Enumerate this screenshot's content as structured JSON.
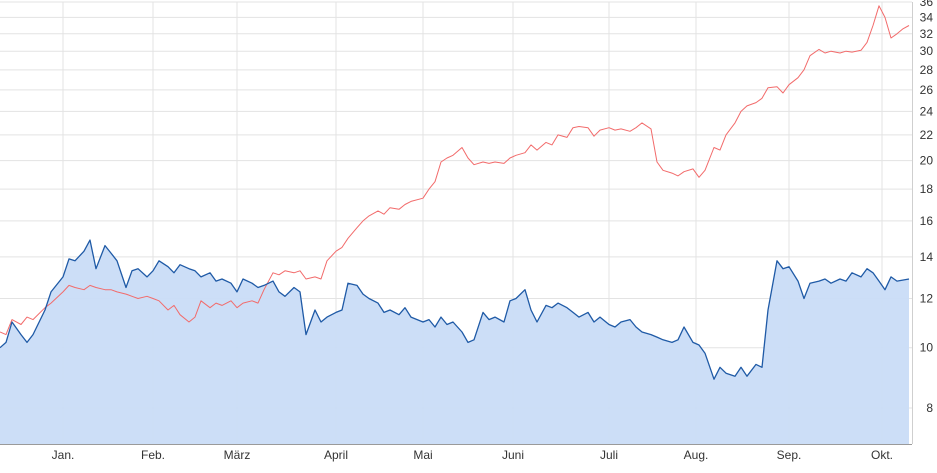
{
  "chart_data": {
    "type": "line",
    "y_scale": "log",
    "ylim": [
      7,
      36
    ],
    "grid": true,
    "legend": "none",
    "y_ticks": [
      8,
      10,
      12,
      14,
      16,
      18,
      20,
      22,
      24,
      26,
      28,
      30,
      32,
      34,
      36
    ],
    "x_ticks": [
      {
        "label": "Jan.",
        "x": "2023-01-02"
      },
      {
        "label": "Feb.",
        "x": "2023-02-01"
      },
      {
        "label": "März",
        "x": "2023-03-01"
      },
      {
        "label": "April",
        "x": "2023-04-03"
      },
      {
        "label": "Mai",
        "x": "2023-05-02"
      },
      {
        "label": "Juni",
        "x": "2023-06-01"
      },
      {
        "label": "Juli",
        "x": "2023-07-03"
      },
      {
        "label": "Aug.",
        "x": "2023-08-01"
      },
      {
        "label": "Sep.",
        "x": "2023-09-01"
      },
      {
        "label": "Okt.",
        "x": "2023-10-02"
      }
    ],
    "xlim": [
      "2022-12-12",
      "2023-10-12"
    ],
    "series": [
      {
        "color": "#f26b6b",
        "style": "line",
        "points": [
          [
            "2022-12-12",
            10.6
          ],
          [
            "2022-12-14",
            10.5
          ],
          [
            "2022-12-16",
            11.1
          ],
          [
            "2022-12-19",
            10.9
          ],
          [
            "2022-12-21",
            11.2
          ],
          [
            "2022-12-23",
            11.1
          ],
          [
            "2022-12-27",
            11.6
          ],
          [
            "2022-12-29",
            11.8
          ],
          [
            "2023-01-02",
            12.3
          ],
          [
            "2023-01-04",
            12.6
          ],
          [
            "2023-01-06",
            12.5
          ],
          [
            "2023-01-09",
            12.4
          ],
          [
            "2023-01-11",
            12.6
          ],
          [
            "2023-01-13",
            12.5
          ],
          [
            "2023-01-16",
            12.4
          ],
          [
            "2023-01-18",
            12.4
          ],
          [
            "2023-01-20",
            12.3
          ],
          [
            "2023-01-23",
            12.2
          ],
          [
            "2023-01-25",
            12.1
          ],
          [
            "2023-01-27",
            12.0
          ],
          [
            "2023-01-30",
            12.1
          ],
          [
            "2023-02-01",
            12.0
          ],
          [
            "2023-02-03",
            11.9
          ],
          [
            "2023-02-06",
            11.5
          ],
          [
            "2023-02-08",
            11.7
          ],
          [
            "2023-02-10",
            11.3
          ],
          [
            "2023-02-13",
            11.0
          ],
          [
            "2023-02-15",
            11.2
          ],
          [
            "2023-02-17",
            11.9
          ],
          [
            "2023-02-20",
            11.6
          ],
          [
            "2023-02-22",
            11.8
          ],
          [
            "2023-02-24",
            11.7
          ],
          [
            "2023-02-27",
            11.9
          ],
          [
            "2023-03-01",
            11.6
          ],
          [
            "2023-03-03",
            11.8
          ],
          [
            "2023-03-06",
            11.9
          ],
          [
            "2023-03-08",
            11.8
          ],
          [
            "2023-03-10",
            12.4
          ],
          [
            "2023-03-13",
            13.2
          ],
          [
            "2023-03-15",
            13.1
          ],
          [
            "2023-03-17",
            13.3
          ],
          [
            "2023-03-20",
            13.2
          ],
          [
            "2023-03-22",
            13.3
          ],
          [
            "2023-03-24",
            12.9
          ],
          [
            "2023-03-27",
            13.0
          ],
          [
            "2023-03-29",
            12.9
          ],
          [
            "2023-03-31",
            13.8
          ],
          [
            "2023-04-03",
            14.3
          ],
          [
            "2023-04-05",
            14.5
          ],
          [
            "2023-04-07",
            15.0
          ],
          [
            "2023-04-10",
            15.6
          ],
          [
            "2023-04-12",
            16.0
          ],
          [
            "2023-04-14",
            16.3
          ],
          [
            "2023-04-17",
            16.6
          ],
          [
            "2023-04-19",
            16.4
          ],
          [
            "2023-04-21",
            16.8
          ],
          [
            "2023-04-24",
            16.7
          ],
          [
            "2023-04-26",
            17.0
          ],
          [
            "2023-04-28",
            17.2
          ],
          [
            "2023-05-02",
            17.4
          ],
          [
            "2023-05-04",
            18.0
          ],
          [
            "2023-05-06",
            18.5
          ],
          [
            "2023-05-08",
            19.9
          ],
          [
            "2023-05-10",
            20.2
          ],
          [
            "2023-05-12",
            20.4
          ],
          [
            "2023-05-15",
            21.0
          ],
          [
            "2023-05-17",
            20.2
          ],
          [
            "2023-05-19",
            19.7
          ],
          [
            "2023-05-22",
            19.9
          ],
          [
            "2023-05-24",
            19.8
          ],
          [
            "2023-05-26",
            19.9
          ],
          [
            "2023-05-29",
            19.8
          ],
          [
            "2023-05-31",
            20.2
          ],
          [
            "2023-06-02",
            20.4
          ],
          [
            "2023-06-05",
            20.6
          ],
          [
            "2023-06-07",
            21.2
          ],
          [
            "2023-06-09",
            20.8
          ],
          [
            "2023-06-12",
            21.4
          ],
          [
            "2023-06-14",
            21.2
          ],
          [
            "2023-06-16",
            22.0
          ],
          [
            "2023-06-19",
            21.8
          ],
          [
            "2023-06-21",
            22.6
          ],
          [
            "2023-06-23",
            22.7
          ],
          [
            "2023-06-26",
            22.6
          ],
          [
            "2023-06-28",
            21.9
          ],
          [
            "2023-06-30",
            22.4
          ],
          [
            "2023-07-03",
            22.6
          ],
          [
            "2023-07-05",
            22.4
          ],
          [
            "2023-07-07",
            22.5
          ],
          [
            "2023-07-10",
            22.3
          ],
          [
            "2023-07-12",
            22.6
          ],
          [
            "2023-07-14",
            23.0
          ],
          [
            "2023-07-17",
            22.5
          ],
          [
            "2023-07-19",
            19.9
          ],
          [
            "2023-07-21",
            19.3
          ],
          [
            "2023-07-24",
            19.1
          ],
          [
            "2023-07-26",
            18.9
          ],
          [
            "2023-07-28",
            19.2
          ],
          [
            "2023-07-31",
            19.4
          ],
          [
            "2023-08-02",
            18.8
          ],
          [
            "2023-08-04",
            19.3
          ],
          [
            "2023-08-07",
            21.0
          ],
          [
            "2023-08-09",
            20.8
          ],
          [
            "2023-08-11",
            22.0
          ],
          [
            "2023-08-14",
            23.0
          ],
          [
            "2023-08-16",
            24.0
          ],
          [
            "2023-08-18",
            24.5
          ],
          [
            "2023-08-21",
            24.8
          ],
          [
            "2023-08-23",
            25.2
          ],
          [
            "2023-08-25",
            26.2
          ],
          [
            "2023-08-28",
            26.3
          ],
          [
            "2023-08-30",
            25.7
          ],
          [
            "2023-09-01",
            26.5
          ],
          [
            "2023-09-04",
            27.2
          ],
          [
            "2023-09-06",
            28.0
          ],
          [
            "2023-09-08",
            29.5
          ],
          [
            "2023-09-11",
            30.2
          ],
          [
            "2023-09-13",
            29.8
          ],
          [
            "2023-09-15",
            30.0
          ],
          [
            "2023-09-18",
            29.8
          ],
          [
            "2023-09-20",
            30.0
          ],
          [
            "2023-09-22",
            29.9
          ],
          [
            "2023-09-25",
            30.1
          ],
          [
            "2023-09-27",
            31.0
          ],
          [
            "2023-09-29",
            33.0
          ],
          [
            "2023-10-01",
            35.5
          ],
          [
            "2023-10-03",
            34.0
          ],
          [
            "2023-10-05",
            31.5
          ],
          [
            "2023-10-07",
            32.0
          ],
          [
            "2023-10-09",
            32.6
          ],
          [
            "2023-10-11",
            33.0
          ]
        ]
      },
      {
        "color": "#1f5aa6",
        "style": "area",
        "fill": "#c9dcf7",
        "points": [
          [
            "2022-12-12",
            10.0
          ],
          [
            "2022-12-14",
            10.2
          ],
          [
            "2022-12-16",
            11.0
          ],
          [
            "2022-12-19",
            10.5
          ],
          [
            "2022-12-21",
            10.2
          ],
          [
            "2022-12-23",
            10.5
          ],
          [
            "2022-12-27",
            11.5
          ],
          [
            "2022-12-29",
            12.3
          ],
          [
            "2023-01-02",
            13.0
          ],
          [
            "2023-01-04",
            13.9
          ],
          [
            "2023-01-06",
            13.8
          ],
          [
            "2023-01-09",
            14.3
          ],
          [
            "2023-01-11",
            14.9
          ],
          [
            "2023-01-13",
            13.4
          ],
          [
            "2023-01-16",
            14.6
          ],
          [
            "2023-01-18",
            14.2
          ],
          [
            "2023-01-20",
            13.8
          ],
          [
            "2023-01-23",
            12.5
          ],
          [
            "2023-01-25",
            13.3
          ],
          [
            "2023-01-27",
            13.4
          ],
          [
            "2023-01-30",
            13.0
          ],
          [
            "2023-02-01",
            13.3
          ],
          [
            "2023-02-03",
            13.8
          ],
          [
            "2023-02-06",
            13.5
          ],
          [
            "2023-02-08",
            13.2
          ],
          [
            "2023-02-10",
            13.6
          ],
          [
            "2023-02-13",
            13.4
          ],
          [
            "2023-02-15",
            13.3
          ],
          [
            "2023-02-17",
            13.0
          ],
          [
            "2023-02-20",
            13.2
          ],
          [
            "2023-02-22",
            12.8
          ],
          [
            "2023-02-24",
            12.9
          ],
          [
            "2023-02-27",
            12.7
          ],
          [
            "2023-03-01",
            12.3
          ],
          [
            "2023-03-03",
            12.9
          ],
          [
            "2023-03-06",
            12.7
          ],
          [
            "2023-03-08",
            12.5
          ],
          [
            "2023-03-10",
            12.6
          ],
          [
            "2023-03-13",
            12.8
          ],
          [
            "2023-03-15",
            12.3
          ],
          [
            "2023-03-17",
            12.1
          ],
          [
            "2023-03-20",
            12.5
          ],
          [
            "2023-03-22",
            12.3
          ],
          [
            "2023-03-24",
            10.5
          ],
          [
            "2023-03-27",
            11.5
          ],
          [
            "2023-03-29",
            11.0
          ],
          [
            "2023-03-31",
            11.2
          ],
          [
            "2023-04-03",
            11.4
          ],
          [
            "2023-04-05",
            11.5
          ],
          [
            "2023-04-07",
            12.7
          ],
          [
            "2023-04-10",
            12.6
          ],
          [
            "2023-04-12",
            12.2
          ],
          [
            "2023-04-14",
            12.0
          ],
          [
            "2023-04-17",
            11.8
          ],
          [
            "2023-04-19",
            11.4
          ],
          [
            "2023-04-21",
            11.5
          ],
          [
            "2023-04-24",
            11.3
          ],
          [
            "2023-04-26",
            11.6
          ],
          [
            "2023-04-28",
            11.2
          ],
          [
            "2023-05-02",
            11.0
          ],
          [
            "2023-05-04",
            11.1
          ],
          [
            "2023-05-06",
            10.8
          ],
          [
            "2023-05-08",
            11.2
          ],
          [
            "2023-05-10",
            10.9
          ],
          [
            "2023-05-12",
            11.0
          ],
          [
            "2023-05-15",
            10.6
          ],
          [
            "2023-05-17",
            10.2
          ],
          [
            "2023-05-19",
            10.3
          ],
          [
            "2023-05-22",
            11.4
          ],
          [
            "2023-05-24",
            11.1
          ],
          [
            "2023-05-26",
            11.2
          ],
          [
            "2023-05-29",
            11.0
          ],
          [
            "2023-05-31",
            11.9
          ],
          [
            "2023-06-02",
            12.0
          ],
          [
            "2023-06-05",
            12.4
          ],
          [
            "2023-06-07",
            11.5
          ],
          [
            "2023-06-09",
            11.0
          ],
          [
            "2023-06-12",
            11.7
          ],
          [
            "2023-06-14",
            11.6
          ],
          [
            "2023-06-16",
            11.8
          ],
          [
            "2023-06-19",
            11.6
          ],
          [
            "2023-06-21",
            11.4
          ],
          [
            "2023-06-23",
            11.2
          ],
          [
            "2023-06-26",
            11.4
          ],
          [
            "2023-06-28",
            11.0
          ],
          [
            "2023-06-30",
            11.2
          ],
          [
            "2023-07-03",
            10.9
          ],
          [
            "2023-07-05",
            10.8
          ],
          [
            "2023-07-07",
            11.0
          ],
          [
            "2023-07-10",
            11.1
          ],
          [
            "2023-07-12",
            10.8
          ],
          [
            "2023-07-14",
            10.6
          ],
          [
            "2023-07-17",
            10.5
          ],
          [
            "2023-07-19",
            10.4
          ],
          [
            "2023-07-21",
            10.3
          ],
          [
            "2023-07-24",
            10.2
          ],
          [
            "2023-07-26",
            10.3
          ],
          [
            "2023-07-28",
            10.8
          ],
          [
            "2023-07-31",
            10.2
          ],
          [
            "2023-08-02",
            10.1
          ],
          [
            "2023-08-04",
            9.8
          ],
          [
            "2023-08-07",
            8.9
          ],
          [
            "2023-08-09",
            9.3
          ],
          [
            "2023-08-11",
            9.1
          ],
          [
            "2023-08-14",
            9.0
          ],
          [
            "2023-08-16",
            9.3
          ],
          [
            "2023-08-18",
            9.0
          ],
          [
            "2023-08-21",
            9.4
          ],
          [
            "2023-08-23",
            9.3
          ],
          [
            "2023-08-25",
            11.5
          ],
          [
            "2023-08-28",
            13.8
          ],
          [
            "2023-08-30",
            13.4
          ],
          [
            "2023-09-01",
            13.5
          ],
          [
            "2023-09-04",
            12.8
          ],
          [
            "2023-09-06",
            12.0
          ],
          [
            "2023-09-08",
            12.7
          ],
          [
            "2023-09-11",
            12.8
          ],
          [
            "2023-09-13",
            12.9
          ],
          [
            "2023-09-15",
            12.7
          ],
          [
            "2023-09-18",
            12.9
          ],
          [
            "2023-09-20",
            12.8
          ],
          [
            "2023-09-22",
            13.2
          ],
          [
            "2023-09-25",
            13.0
          ],
          [
            "2023-09-27",
            13.4
          ],
          [
            "2023-09-29",
            13.2
          ],
          [
            "2023-10-01",
            12.8
          ],
          [
            "2023-10-03",
            12.4
          ],
          [
            "2023-10-05",
            13.0
          ],
          [
            "2023-10-07",
            12.8
          ],
          [
            "2023-10-11",
            12.9
          ]
        ]
      }
    ]
  }
}
